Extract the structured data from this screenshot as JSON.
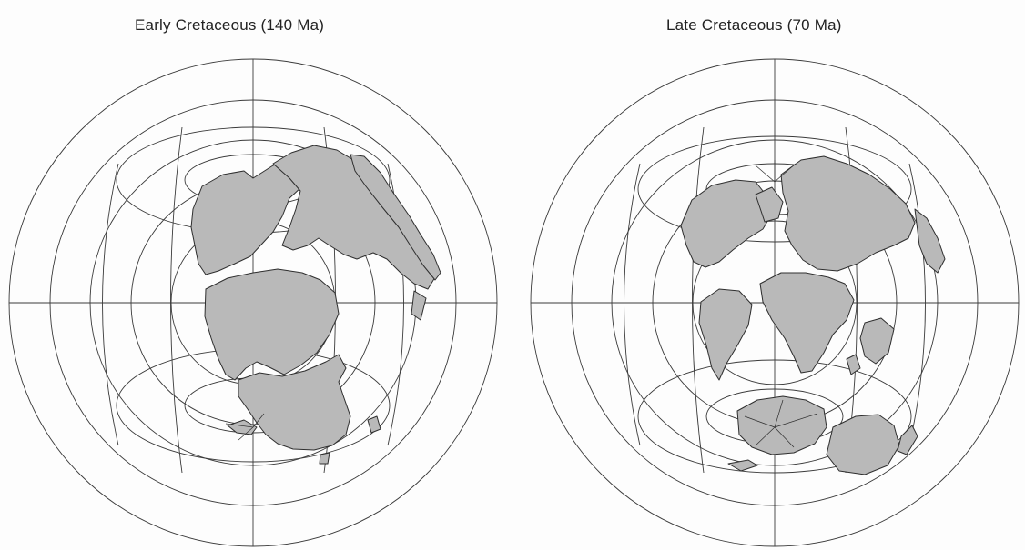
{
  "figure": {
    "maps": [
      {
        "id": "early",
        "title": "Early Cretaceous (140 Ma)"
      },
      {
        "id": "late",
        "title": "Late Cretaceous (70 Ma)"
      }
    ]
  },
  "colors": {
    "background": "#fdfdfd",
    "land": "#b9b9b9",
    "gridlines": "#3a3a3a"
  }
}
